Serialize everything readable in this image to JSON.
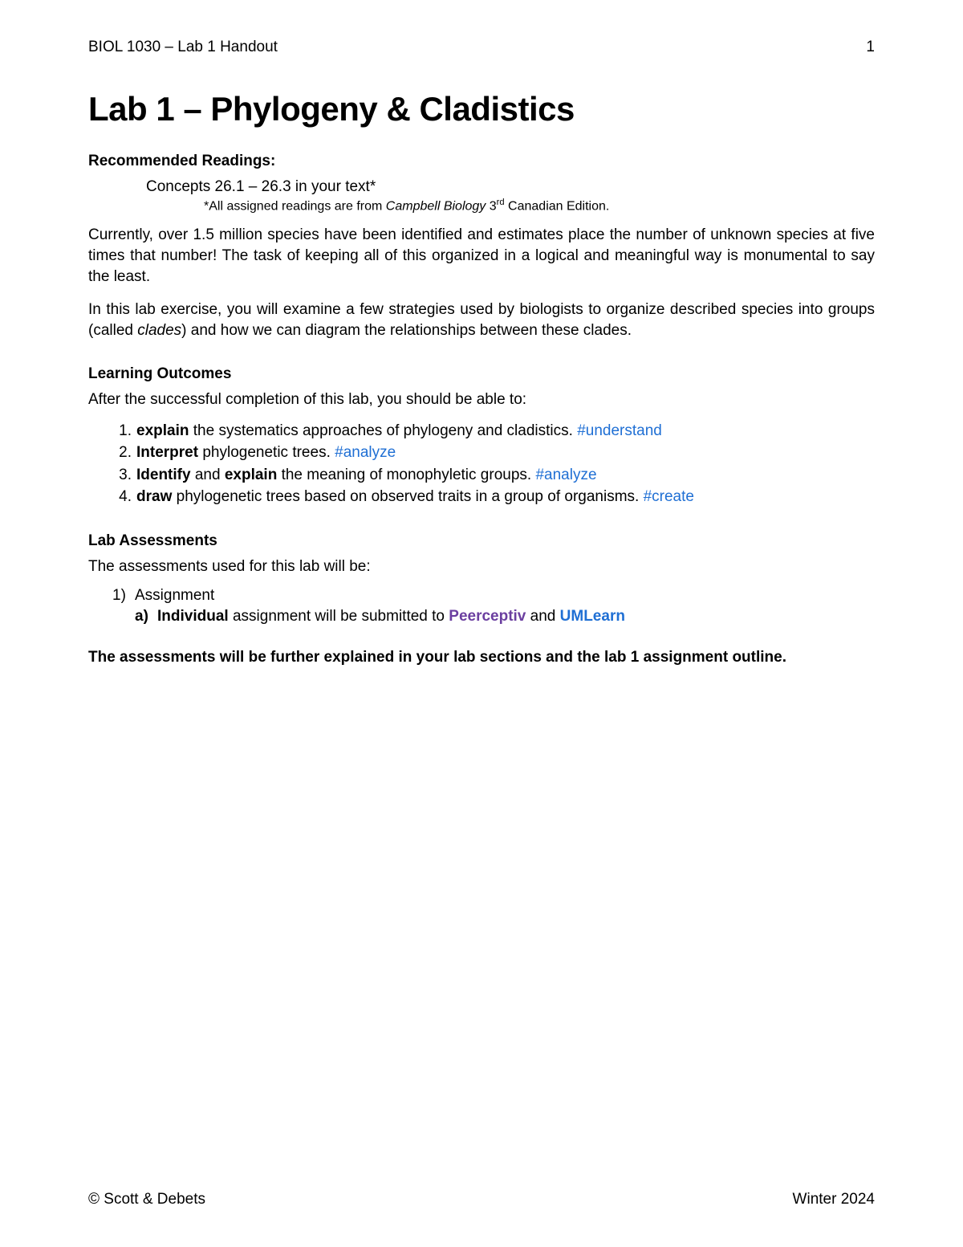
{
  "header": {
    "left": "BIOL 1030 – Lab 1 Handout",
    "page_number": "1"
  },
  "title": "Lab 1 – Phylogeny & Cladistics",
  "readings": {
    "heading": "Recommended Readings:",
    "line": "Concepts 26.1 – 26.3 in your text*",
    "note_prefix": "*All assigned readings are from ",
    "note_italic": "Campbell Biology",
    "note_edition_prefix": " 3",
    "note_edition_sup": "rd",
    "note_suffix": " Canadian Edition."
  },
  "paragraphs": {
    "p1": "Currently, over 1.5 million species have been identified and estimates place the number of unknown species at five times that number! The task of keeping all of this organized in a logical and meaningful way is monumental to say the least.",
    "p2_a": "In this lab exercise, you will examine a few strategies used by biologists to organize described species into groups (called ",
    "p2_italic": "clades",
    "p2_b": ") and how we can diagram the relationships between these clades."
  },
  "outcomes": {
    "heading": "Learning Outcomes",
    "intro": "After the successful completion of this lab, you should be able to:",
    "items": [
      {
        "num": "1.",
        "bold": "explain",
        "rest": " the systematics approaches of phylogeny and cladistics. ",
        "tag": "#understand"
      },
      {
        "num": "2.",
        "bold": "Interpret",
        "rest": " phylogenetic trees. ",
        "tag": "#analyze"
      },
      {
        "num": "3.",
        "bold": "Identify",
        "mid": " and ",
        "bold2": "explain",
        "rest": " the meaning of monophyletic groups. ",
        "tag": "#analyze"
      },
      {
        "num": "4.",
        "bold": "draw",
        "rest": " phylogenetic trees based on observed traits in a group of organisms. ",
        "tag": "#create"
      }
    ]
  },
  "assessments": {
    "heading": "Lab Assessments",
    "intro": "The assessments used for this lab will be:",
    "item1_num": "1)",
    "item1_label": "Assignment",
    "sub_num": "a)",
    "sub_bold": "Individual",
    "sub_text": " assignment will be submitted to ",
    "peerceptiv": "Peerceptiv",
    "and": " and ",
    "umlearn": "UMLearn"
  },
  "final_note": "The assessments will be further explained in your lab sections and the lab 1 assignment outline.",
  "footer": {
    "left": "© Scott & Debets",
    "right": "Winter 2024"
  },
  "colors": {
    "text": "#000000",
    "hashtag": "#1f6fd4",
    "link_purple": "#6b3fa0",
    "link_blue": "#1f6fd4",
    "background": "#ffffff"
  },
  "typography": {
    "body_fontsize_pt": 14,
    "title_fontsize_pt": 32,
    "heading_fontsize_pt": 14,
    "note_fontsize_pt": 12
  }
}
